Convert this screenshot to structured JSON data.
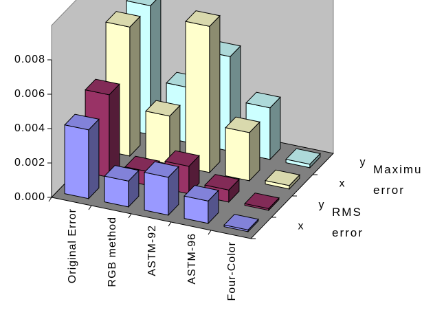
{
  "chart_data": {
    "type": "bar3d",
    "categories": [
      "Original Error",
      "RGB method",
      "ASTM-92",
      "ASTM-96",
      "Four-Color"
    ],
    "series": [
      {
        "name": "x",
        "color": "#9999ff",
        "values": [
          0.004,
          0.0015,
          0.0022,
          0.0013,
          0.0001
        ]
      },
      {
        "name": "y",
        "color": "#993366",
        "values": [
          0.0048,
          0.0008,
          0.0016,
          0.0007,
          0.0001
        ]
      },
      {
        "name": "x",
        "color": "#ffffcc",
        "values": [
          0.0075,
          0.0028,
          0.0085,
          0.0028,
          0.0002
        ]
      },
      {
        "name": "y",
        "color": "#ccffff",
        "values": [
          0.0075,
          0.0032,
          0.0055,
          0.003,
          0.0002
        ]
      }
    ],
    "group_labels": [
      "RMS error",
      "Maximum error"
    ],
    "ylim": [
      0,
      0.008
    ],
    "yticks": [
      {
        "value": 0,
        "label": "0.000"
      },
      {
        "value": 0.002,
        "label": "0.002"
      },
      {
        "value": 0.004,
        "label": "0.004"
      },
      {
        "value": 0.006,
        "label": "0.006"
      },
      {
        "value": 0.008,
        "label": "0.008"
      }
    ]
  }
}
